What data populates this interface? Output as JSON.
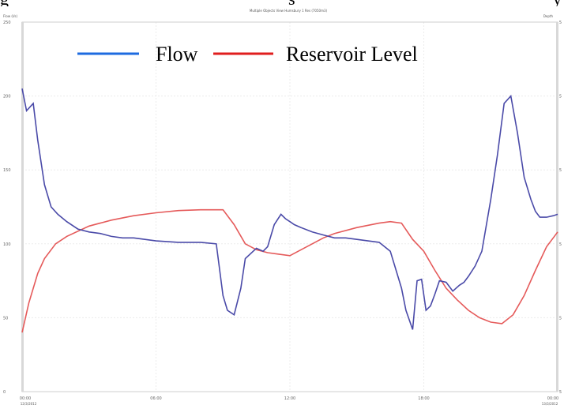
{
  "header_text": {
    "left": "g",
    "middle": "s",
    "right": "y"
  },
  "chart_data": {
    "type": "line",
    "title": "Multiple Objects View Humsbury 1 Res (7050m3)",
    "ylabel_left": "Flow (l/s)",
    "ylabel_right": "Depth",
    "x_ticks": [
      "00:00",
      "06:00",
      "12:00",
      "18:00",
      "00:00"
    ],
    "x_tick_dates": [
      "12/3/2012",
      "",
      "",
      "",
      "13/3/2012"
    ],
    "y_left_ticks": [
      "250",
      "200",
      "150",
      "100",
      "50",
      "0"
    ],
    "y_right_ticks": [
      "5",
      "5",
      "5",
      "5",
      "5",
      "5"
    ],
    "ylim_left": [
      0,
      250
    ],
    "xlim": [
      0,
      24
    ],
    "grid": true,
    "legend_position": "top-left",
    "colors": {
      "flow": "#4a4aa8",
      "level": "#e55a5a",
      "legend_flow": "#1e6be0",
      "legend_level": "#e01e1e"
    },
    "series": [
      {
        "name": "Flow",
        "x": [
          0,
          0.2,
          0.5,
          0.7,
          1.0,
          1.3,
          1.6,
          2.0,
          2.5,
          3.0,
          3.5,
          4.0,
          4.5,
          5.0,
          6.0,
          7.0,
          8.0,
          8.7,
          9.0,
          9.2,
          9.5,
          9.8,
          10.0,
          10.5,
          10.8,
          11.0,
          11.3,
          11.6,
          11.8,
          12.0,
          12.2,
          12.5,
          13.0,
          13.5,
          14.0,
          14.5,
          15.0,
          15.5,
          16.0,
          16.5,
          17.0,
          17.2,
          17.5,
          17.7,
          17.9,
          18.1,
          18.3,
          18.5,
          18.7,
          19.0,
          19.3,
          19.6,
          19.8,
          20.0,
          20.3,
          20.6,
          21.0,
          21.3,
          21.6,
          21.9,
          22.2,
          22.5,
          22.8,
          23.0,
          23.2,
          23.5,
          23.8,
          24.0
        ],
        "values": [
          205,
          190,
          195,
          170,
          140,
          125,
          120,
          115,
          110,
          108,
          107,
          105,
          104,
          104,
          102,
          101,
          101,
          100,
          65,
          55,
          52,
          70,
          90,
          97,
          95,
          98,
          113,
          120,
          117,
          115,
          113,
          111,
          108,
          106,
          104,
          104,
          103,
          102,
          101,
          95,
          70,
          55,
          42,
          75,
          76,
          55,
          58,
          66,
          75,
          74,
          68,
          72,
          74,
          78,
          85,
          95,
          130,
          160,
          195,
          200,
          175,
          145,
          130,
          122,
          118,
          118,
          119,
          120
        ]
      },
      {
        "name": "Reservoir Level",
        "x": [
          0,
          0.3,
          0.7,
          1.0,
          1.5,
          2.0,
          3.0,
          4.0,
          5.0,
          6.0,
          7.0,
          8.0,
          9.0,
          9.5,
          10.0,
          10.5,
          11.0,
          11.5,
          12.0,
          12.5,
          13.0,
          13.5,
          14.0,
          15.0,
          16.0,
          16.5,
          17.0,
          17.5,
          18.0,
          18.5,
          19.0,
          19.5,
          20.0,
          20.5,
          21.0,
          21.5,
          22.0,
          22.5,
          23.0,
          23.5,
          24.0
        ],
        "values": [
          40,
          60,
          80,
          90,
          100,
          105,
          112,
          116,
          119,
          121,
          122.5,
          123,
          123,
          113,
          100,
          96,
          94,
          93,
          92,
          96,
          100,
          104,
          107,
          111,
          114,
          115,
          114,
          103,
          95,
          82,
          70,
          62,
          55,
          50,
          47,
          46,
          52,
          65,
          82,
          98,
          108
        ]
      }
    ]
  }
}
